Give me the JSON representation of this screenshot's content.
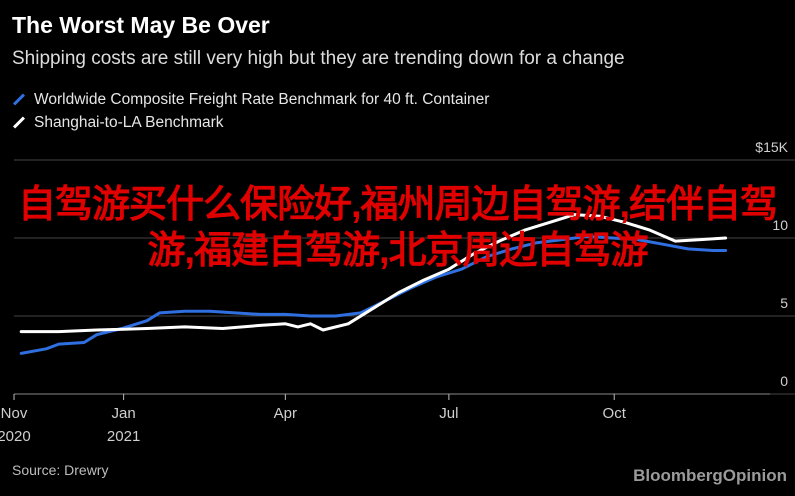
{
  "header": {
    "title": "The Worst May Be Over",
    "subtitle": "Shipping costs are still very high but they are trending down for a change"
  },
  "footer": {
    "source": "Source: Drewry",
    "brand": "BloombergOpinion"
  },
  "overlay_text": "自驾游买什么保险好,福州周边自驾游,结伴自驾游,福建自驾游,北京周边自驾游",
  "colors": {
    "background": "#000000",
    "series_blue": "#2f6fe0",
    "series_white": "#ffffff",
    "gridline": "#444444",
    "overlay_red": "#e10000"
  },
  "chart_data": {
    "type": "line",
    "title": "The Worst May Be Over",
    "subtitle": "Shipping costs are still very high but they are trending down for a change",
    "legend_position": "top-left",
    "grid": true,
    "ylim": [
      0,
      15
    ],
    "y_ticks": [
      {
        "value": 0,
        "label": "0"
      },
      {
        "value": 5,
        "label": "5"
      },
      {
        "value": 10,
        "label": "10"
      },
      {
        "value": 15,
        "label": "$15K"
      }
    ],
    "x_range": [
      "2020-11-01",
      "2021-12-10"
    ],
    "x_ticks": [
      {
        "date": "2020-11-01",
        "line1": "Nov",
        "line2": "2020"
      },
      {
        "date": "2021-01-01",
        "line1": "Jan",
        "line2": "2021"
      },
      {
        "date": "2021-04-01",
        "line1": "Apr",
        "line2": ""
      },
      {
        "date": "2021-07-01",
        "line1": "Jul",
        "line2": ""
      },
      {
        "date": "2021-10-01",
        "line1": "Oct",
        "line2": ""
      }
    ],
    "series": [
      {
        "name": "Worldwide Composite Freight Rate Benchmark for 40 ft. Container",
        "color": "#2f6fe0",
        "points": [
          [
            "2020-11-05",
            2.6
          ],
          [
            "2020-11-19",
            2.9
          ],
          [
            "2020-11-26",
            3.2
          ],
          [
            "2020-12-10",
            3.3
          ],
          [
            "2020-12-17",
            3.8
          ],
          [
            "2020-12-31",
            4.2
          ],
          [
            "2021-01-14",
            4.7
          ],
          [
            "2021-01-21",
            5.2
          ],
          [
            "2021-02-04",
            5.3
          ],
          [
            "2021-02-18",
            5.3
          ],
          [
            "2021-03-04",
            5.2
          ],
          [
            "2021-03-18",
            5.1
          ],
          [
            "2021-04-01",
            5.1
          ],
          [
            "2021-04-15",
            5.0
          ],
          [
            "2021-04-29",
            5.0
          ],
          [
            "2021-05-13",
            5.2
          ],
          [
            "2021-05-27",
            6.0
          ],
          [
            "2021-06-10",
            6.8
          ],
          [
            "2021-06-24",
            7.5
          ],
          [
            "2021-07-08",
            8.0
          ],
          [
            "2021-07-22",
            8.8
          ],
          [
            "2021-08-05",
            9.3
          ],
          [
            "2021-08-19",
            9.7
          ],
          [
            "2021-09-02",
            9.9
          ],
          [
            "2021-09-16",
            10.1
          ],
          [
            "2021-09-30",
            10.0
          ],
          [
            "2021-10-14",
            9.9
          ],
          [
            "2021-10-28",
            9.6
          ],
          [
            "2021-11-11",
            9.3
          ],
          [
            "2021-11-25",
            9.2
          ],
          [
            "2021-12-02",
            9.2
          ]
        ]
      },
      {
        "name": "Shanghai-to-LA Benchmark",
        "color": "#ffffff",
        "points": [
          [
            "2020-11-05",
            4.0
          ],
          [
            "2020-11-26",
            4.0
          ],
          [
            "2020-12-17",
            4.1
          ],
          [
            "2021-01-14",
            4.2
          ],
          [
            "2021-02-04",
            4.3
          ],
          [
            "2021-02-25",
            4.2
          ],
          [
            "2021-03-18",
            4.4
          ],
          [
            "2021-04-01",
            4.5
          ],
          [
            "2021-04-08",
            4.3
          ],
          [
            "2021-04-15",
            4.5
          ],
          [
            "2021-04-22",
            4.1
          ],
          [
            "2021-05-06",
            4.5
          ],
          [
            "2021-05-20",
            5.5
          ],
          [
            "2021-06-03",
            6.5
          ],
          [
            "2021-06-17",
            7.3
          ],
          [
            "2021-07-01",
            8.0
          ],
          [
            "2021-07-15",
            9.0
          ],
          [
            "2021-07-29",
            9.8
          ],
          [
            "2021-08-12",
            10.5
          ],
          [
            "2021-08-26",
            11.0
          ],
          [
            "2021-09-09",
            11.5
          ],
          [
            "2021-09-23",
            11.4
          ],
          [
            "2021-10-07",
            11.0
          ],
          [
            "2021-10-21",
            10.5
          ],
          [
            "2021-11-04",
            9.8
          ],
          [
            "2021-11-18",
            9.9
          ],
          [
            "2021-12-02",
            10.0
          ]
        ]
      }
    ]
  }
}
